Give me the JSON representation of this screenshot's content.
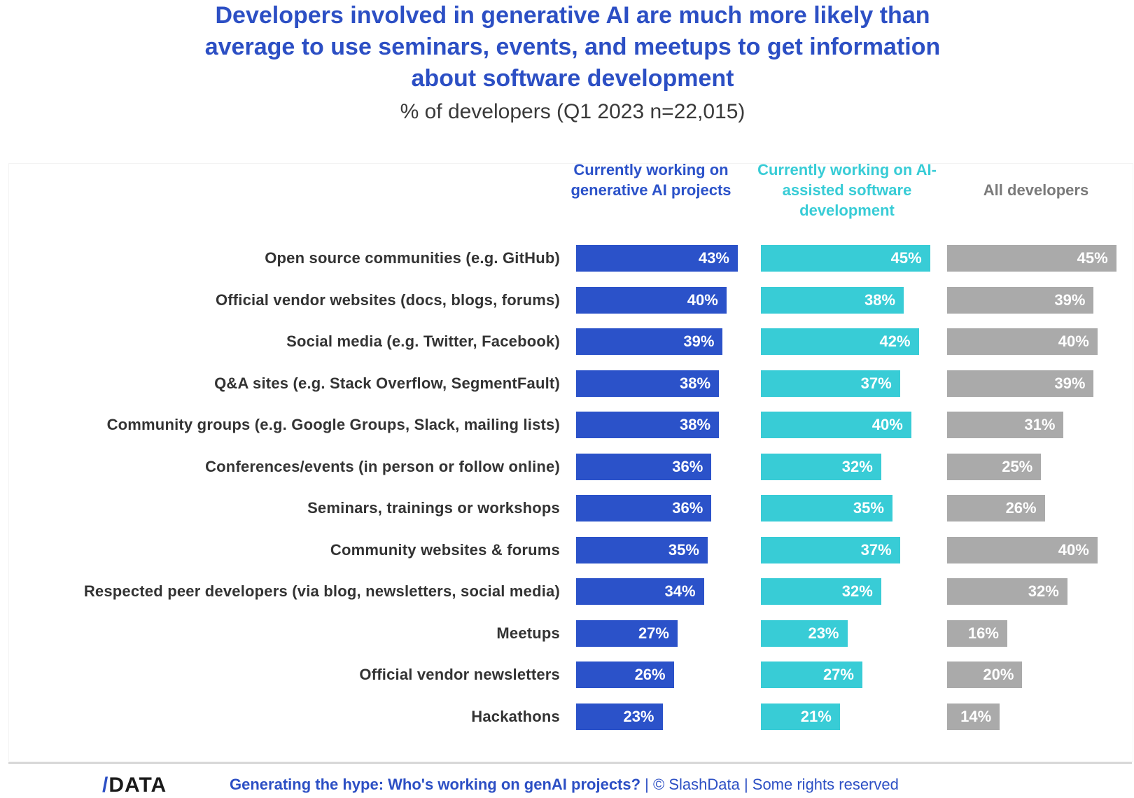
{
  "header": {
    "title_lines": [
      "Developers involved in generative AI are much more likely than",
      "average to use seminars, events, and meetups to get information",
      "about software development"
    ],
    "subtitle": "% of developers (Q1 2023 n=22,015)"
  },
  "colors": {
    "genai": "#2b52c9",
    "ai_assisted": "#38ccd6",
    "all": "#aaaaaa",
    "title": "#2c4fc4"
  },
  "chart_data": {
    "type": "bar",
    "orientation": "horizontal",
    "title": "Developers involved in generative AI are much more likely than average to use seminars, events, and meetups to get information about software development",
    "subtitle": "% of developers (Q1 2023 n=22,015)",
    "xlabel": "",
    "ylabel": "",
    "categories": [
      "Open source communities (e.g. GitHub)",
      "Official vendor websites (docs, blogs, forums)",
      "Social media (e.g. Twitter, Facebook)",
      "Q&A sites (e.g. Stack Overflow, SegmentFault)",
      "Community groups (e.g. Google Groups, Slack, mailing lists)",
      "Conferences/events (in person or follow online)",
      "Seminars, trainings or workshops",
      "Community websites & forums",
      "Respected peer developers (via blog, newsletters, social media)",
      "Meetups",
      "Official vendor newsletters",
      "Hackathons"
    ],
    "series": [
      {
        "name": "Currently working on generative AI projects",
        "values": [
          43,
          40,
          39,
          38,
          38,
          36,
          36,
          35,
          34,
          27,
          26,
          23
        ]
      },
      {
        "name": "Currently working on AI-assisted software development",
        "values": [
          45,
          38,
          42,
          37,
          40,
          32,
          35,
          37,
          32,
          23,
          27,
          21
        ]
      },
      {
        "name": "All developers",
        "values": [
          45,
          39,
          40,
          39,
          31,
          25,
          26,
          40,
          32,
          16,
          20,
          14
        ]
      }
    ],
    "value_labels": [
      [
        "43%",
        "40%",
        "39%",
        "38%",
        "38%",
        "36%",
        "36%",
        "35%",
        "34%",
        "27%",
        "26%",
        "23%"
      ],
      [
        "45%",
        "38%",
        "42%",
        "37%",
        "40%",
        "32%",
        "35%",
        "37%",
        "32%",
        "23%",
        "27%",
        "21%"
      ],
      [
        "45%",
        "39%",
        "40%",
        "39%",
        "31%",
        "25%",
        "26%",
        "40%",
        "32%",
        "16%",
        "20%",
        "14%"
      ]
    ],
    "unit": "%",
    "grid": false,
    "legend": "column headers above bars"
  },
  "footer": {
    "logo": "/DATA",
    "report": "Generating the hype: Who's working on genAI projects?",
    "credit": " | © SlashData | Some rights reserved"
  }
}
